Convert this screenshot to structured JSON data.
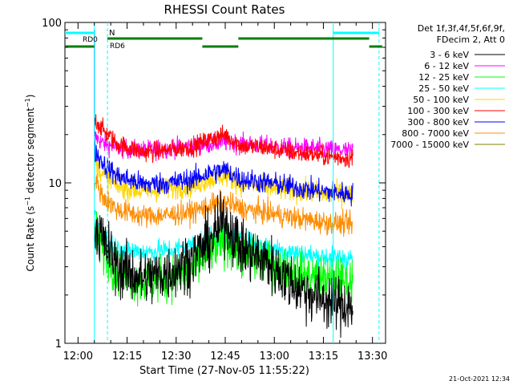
{
  "chart_data": {
    "type": "line",
    "title": "RHESSI Count Rates",
    "xlabel": "Start Time (27-Nov-05 11:55:22)",
    "ylabel": "Count Rate (s",
    "ylabel_sup": "−1",
    "ylabel_suffix": " detector segment",
    "ylabel_sup2": "−1",
    "ylabel_end": ")",
    "y_scale": "log",
    "xlim": [
      "11:56",
      "13:34"
    ],
    "ylim": [
      1,
      100
    ],
    "x_ticks": [
      "12:00",
      "12:15",
      "12:30",
      "12:45",
      "13:00",
      "13:15",
      "13:30"
    ],
    "y_ticks": [
      "1",
      "10",
      "100"
    ],
    "legend_position": "top-right",
    "legend_header": [
      "Det 1f,3f,4f,5f,6f,9f,",
      "FDecim 2, Att 0"
    ],
    "series": [
      {
        "name": "3 - 6 keV",
        "color": "#000000",
        "x": [
          "12:05",
          "12:08",
          "12:12",
          "12:20",
          "12:28",
          "12:35",
          "12:40",
          "12:45",
          "12:50",
          "12:58",
          "13:05",
          "13:12",
          "13:18",
          "13:24"
        ],
        "values": [
          5.5,
          4.2,
          3.0,
          2.5,
          2.8,
          3.4,
          4.3,
          5.8,
          3.9,
          3.2,
          2.4,
          2.0,
          1.8,
          1.7
        ]
      },
      {
        "name": "6 - 12 keV",
        "color": "#ff00ff",
        "x": [
          "12:05",
          "12:08",
          "12:12",
          "12:20",
          "12:28",
          "12:35",
          "12:40",
          "12:45",
          "12:50",
          "12:58",
          "13:05",
          "13:12",
          "13:18",
          "13:24"
        ],
        "values": [
          19.5,
          17.5,
          16.5,
          16.0,
          16.5,
          17.0,
          17.5,
          18.0,
          17.5,
          17.0,
          16.5,
          16.5,
          16.0,
          15.8
        ]
      },
      {
        "name": "12 - 25 keV",
        "color": "#00ff00",
        "x": [
          "12:05",
          "12:08",
          "12:12",
          "12:20",
          "12:28",
          "12:35",
          "12:40",
          "12:45",
          "12:50",
          "12:58",
          "13:05",
          "13:12",
          "13:18",
          "13:24"
        ],
        "values": [
          5.0,
          3.8,
          2.8,
          2.4,
          2.5,
          2.9,
          3.6,
          4.3,
          3.6,
          3.1,
          2.8,
          2.6,
          2.5,
          2.4
        ]
      },
      {
        "name": "25 - 50 keV",
        "color": "#00ffff",
        "x": [
          "12:05",
          "12:08",
          "12:12",
          "12:20",
          "12:28",
          "12:35",
          "12:40",
          "12:45",
          "12:50",
          "12:58",
          "13:05",
          "13:12",
          "13:18",
          "13:24"
        ],
        "values": [
          6.5,
          4.5,
          3.9,
          3.7,
          3.8,
          4.1,
          4.5,
          4.7,
          4.3,
          4.0,
          3.7,
          3.5,
          3.4,
          3.4
        ]
      },
      {
        "name": "50 - 100 keV",
        "color": "#ffd700",
        "x": [
          "12:05",
          "12:08",
          "12:12",
          "12:20",
          "12:28",
          "12:35",
          "12:40",
          "12:45",
          "12:50",
          "12:58",
          "13:05",
          "13:12",
          "13:18",
          "13:24"
        ],
        "values": [
          13.5,
          11.0,
          9.5,
          8.8,
          9.2,
          9.6,
          10.5,
          11.2,
          9.8,
          9.4,
          9.0,
          8.7,
          8.5,
          8.5
        ]
      },
      {
        "name": "100 - 300 keV",
        "color": "#ff0000",
        "x": [
          "12:05",
          "12:08",
          "12:12",
          "12:20",
          "12:28",
          "12:35",
          "12:40",
          "12:45",
          "12:50",
          "12:58",
          "13:05",
          "13:12",
          "13:18",
          "13:24"
        ],
        "values": [
          25.0,
          21.0,
          17.5,
          15.5,
          16.0,
          16.8,
          18.5,
          20.0,
          17.0,
          16.5,
          15.5,
          15.0,
          14.5,
          14.2
        ]
      },
      {
        "name": "300 - 800 keV",
        "color": "#0000ff",
        "x": [
          "12:05",
          "12:08",
          "12:12",
          "12:20",
          "12:28",
          "12:35",
          "12:40",
          "12:45",
          "12:50",
          "12:58",
          "13:05",
          "13:12",
          "13:18",
          "13:24"
        ],
        "values": [
          16.0,
          13.0,
          11.0,
          9.8,
          10.0,
          10.5,
          11.5,
          12.0,
          10.5,
          10.0,
          9.5,
          9.0,
          8.7,
          8.5
        ]
      },
      {
        "name": "800 - 7000 keV",
        "color": "#ff8c00",
        "x": [
          "12:05",
          "12:08",
          "12:12",
          "12:20",
          "12:28",
          "12:35",
          "12:40",
          "12:45",
          "12:50",
          "12:58",
          "13:05",
          "13:12",
          "13:18",
          "13:24"
        ],
        "values": [
          10.5,
          8.0,
          6.8,
          6.2,
          6.3,
          6.6,
          7.2,
          7.6,
          6.9,
          6.5,
          6.1,
          5.8,
          5.6,
          5.5
        ]
      },
      {
        "name": "7000 - 15000 keV",
        "color": "#808000",
        "x": [],
        "values": []
      }
    ],
    "annotations": {
      "N": {
        "label": "N",
        "color": "#00ffff"
      },
      "RD0": {
        "label": "RD0",
        "color": "#008000"
      },
      "RD6": {
        "label": "RD6",
        "color": "#008000"
      }
    },
    "spike": {
      "x": "12:05",
      "value": 90
    },
    "vertical_markers": [
      {
        "x": "12:05",
        "style": "solid",
        "color": "#00ffff"
      },
      {
        "x": "12:09",
        "style": "dashed",
        "color": "#00ffff"
      },
      {
        "x": "13:18",
        "style": "solid",
        "color": "#00ffff"
      },
      {
        "x": "13:32",
        "style": "dashed",
        "color": "#00ffff"
      }
    ],
    "flag_bars": [
      {
        "label": "N",
        "color": "#00ffff",
        "segments": [
          [
            "11:56",
            "12:05"
          ],
          [
            "13:18",
            "13:32"
          ]
        ]
      },
      {
        "label": "RD0",
        "color": "#008000",
        "segments": [
          [
            "12:09",
            "12:38"
          ],
          [
            "12:49",
            "13:29"
          ]
        ]
      },
      {
        "label": "RD6",
        "color": "#008000",
        "segments": [
          [
            "11:56",
            "12:05"
          ],
          [
            "12:38",
            "12:49"
          ],
          [
            "13:29",
            "13:33"
          ]
        ]
      }
    ],
    "timestamp": "21-Oct-2021 12:34"
  }
}
